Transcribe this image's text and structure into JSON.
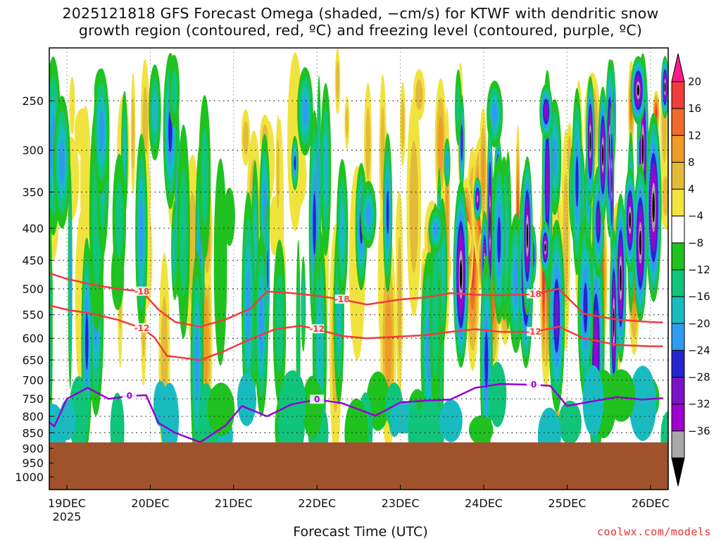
{
  "chart_data": {
    "type": "heatmap",
    "title": "2025121818 GFS Forecast Omega (shaded, −cm/s) for KTWF with dendritic snow",
    "subtitle": "growth region (contoured, red, ºC) and freezing level (contoured, purple, ºC)",
    "xlabel": "Forecast Time (UTC)",
    "x_ticks": [
      "19DEC",
      "20DEC",
      "21DEC",
      "22DEC",
      "23DEC",
      "24DEC",
      "25DEC",
      "26DEC"
    ],
    "x_tick_year": "2025",
    "y_ticks": [
      250,
      300,
      350,
      400,
      450,
      500,
      550,
      600,
      650,
      700,
      750,
      800,
      850,
      900,
      950,
      1000
    ],
    "y_scale": "log-pressure",
    "ylim": [
      1000,
      200
    ],
    "grid": true,
    "colorbar": {
      "position": "right",
      "ticks": [
        20,
        16,
        12,
        8,
        4,
        -4,
        -8,
        -12,
        -16,
        -20,
        -24,
        -28,
        -32,
        -36
      ],
      "colors": [
        "#ff1a8c",
        "#f03c3c",
        "#f06a2a",
        "#f09a28",
        "#e3ba3a",
        "#f1e33e",
        "#ffffff",
        "#1fc21f",
        "#10c47a",
        "#18bcc0",
        "#2e9cf0",
        "#2525d0",
        "#7a14c8",
        "#a000d0",
        "#a8a8a8",
        "#000000"
      ]
    },
    "contours": [
      {
        "label": "-18",
        "color": "#f03c3c",
        "x": [
          18.75,
          19.0,
          19.3,
          19.6,
          19.9,
          20.1,
          20.3,
          20.6,
          20.9,
          21.2,
          21.4,
          21.7,
          22.0,
          22.3,
          22.6,
          23.0,
          23.3,
          23.6,
          23.9,
          24.2,
          24.6,
          24.9,
          25.2,
          25.6,
          26.0,
          26.15
        ],
        "y": [
          470,
          482,
          492,
          500,
          505,
          540,
          565,
          575,
          560,
          538,
          505,
          508,
          513,
          520,
          530,
          520,
          516,
          508,
          511,
          512,
          510,
          500,
          548,
          560,
          565,
          566
        ]
      },
      {
        "label": "-12",
        "color": "#f03c3c",
        "x": [
          18.75,
          19.0,
          19.3,
          19.6,
          19.9,
          20.05,
          20.2,
          20.4,
          20.6,
          20.9,
          21.2,
          21.5,
          21.8,
          22.0,
          22.3,
          22.6,
          23.0,
          23.3,
          23.6,
          23.9,
          24.2,
          24.6,
          24.9,
          25.2,
          25.6,
          26.0,
          26.15
        ],
        "y": [
          530,
          540,
          548,
          560,
          578,
          598,
          640,
          645,
          650,
          628,
          602,
          580,
          573,
          580,
          595,
          600,
          596,
          593,
          586,
          580,
          586,
          586,
          575,
          600,
          615,
          618,
          618
        ]
      },
      {
        "label": "0",
        "color": "#9400d3",
        "x": [
          18.75,
          18.85,
          19.0,
          19.25,
          19.5,
          19.75,
          19.95,
          20.1,
          20.3,
          20.6,
          20.9,
          21.1,
          21.4,
          21.7,
          22.0,
          22.3,
          22.7,
          23.0,
          23.3,
          23.6,
          23.9,
          24.2,
          24.6,
          24.8,
          25.0,
          25.3,
          25.6,
          25.9,
          26.15
        ],
        "y": [
          810,
          830,
          750,
          720,
          750,
          742,
          740,
          820,
          850,
          880,
          828,
          770,
          800,
          765,
          752,
          762,
          798,
          760,
          755,
          752,
          720,
          710,
          712,
          715,
          770,
          757,
          745,
          752,
          748
        ]
      }
    ]
  },
  "credit": "coolwx.com/models"
}
